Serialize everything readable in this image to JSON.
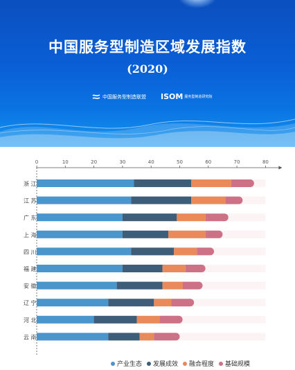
{
  "title": "中国服务型制造区域发展指数",
  "year": "(2020)",
  "logos": {
    "alliance": "中国服务型制造联盟",
    "isom_mark": "ISOM",
    "isom_text": "服务型制造研究院",
    "alliance_icon": "wave-logo-icon"
  },
  "colors": {
    "banner": "#0a5fd6",
    "series": [
      "#4a95cb",
      "#3e5d78",
      "#ea8a5a",
      "#cd7186"
    ],
    "track": "#fbf3f4"
  },
  "chart_data": {
    "type": "bar",
    "orientation": "horizontal",
    "stacked": true,
    "categories": [
      "浙江",
      "江苏",
      "广东",
      "上海",
      "四川",
      "福建",
      "安徽",
      "辽宁",
      "河北",
      "云南"
    ],
    "category_labels": [
      "浙 江",
      "江 苏",
      "广 东",
      "上 海",
      "四 川",
      "福 建",
      "安 徽",
      "辽 宁",
      "河 北",
      "云 南"
    ],
    "series": [
      {
        "name": "产业生态",
        "values": [
          34,
          33,
          30,
          30,
          33,
          30,
          28,
          25,
          20,
          25
        ]
      },
      {
        "name": "发展成效",
        "values": [
          20,
          21,
          19,
          16,
          15,
          14,
          16,
          16,
          15,
          11
        ]
      },
      {
        "name": "融合程度",
        "values": [
          14,
          12,
          10,
          13,
          8,
          8,
          7,
          6,
          8,
          5
        ]
      },
      {
        "name": "基础规模",
        "values": [
          8,
          6,
          8,
          6,
          6,
          7,
          7,
          8,
          8,
          9
        ]
      }
    ],
    "x_ticks": [
      "0",
      "10",
      "20",
      "30",
      "40",
      "50",
      "60",
      "70",
      "80"
    ],
    "xlim": [
      0,
      80
    ],
    "legend": "bottom-right",
    "grid": false
  }
}
